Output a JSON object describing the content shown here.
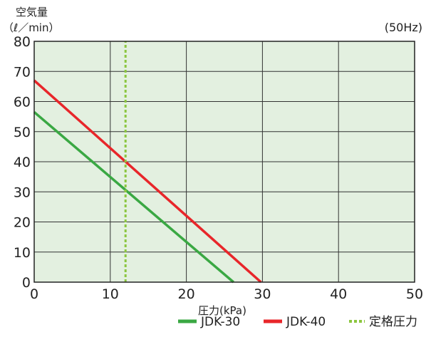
{
  "chart_data": {
    "type": "line",
    "ylabel_line1": "空気量",
    "ylabel_line2": "（ℓ／min）",
    "annotation": "(50Hz)",
    "xlabel": "圧力(kPa)",
    "xlim": [
      0,
      50
    ],
    "ylim": [
      0,
      80
    ],
    "x_ticks": [
      0,
      10,
      20,
      30,
      40,
      50
    ],
    "y_ticks": [
      0,
      10,
      20,
      30,
      40,
      50,
      60,
      70,
      80
    ],
    "grid": true,
    "legend_position": "bottom-right",
    "background_color": "#e3f0e0",
    "series": [
      {
        "name": "JDK-30",
        "color": "#3aa843",
        "style": "solid",
        "points": [
          [
            0,
            56.5
          ],
          [
            26.2,
            0
          ]
        ]
      },
      {
        "name": "JDK-40",
        "color": "#e8262a",
        "style": "solid",
        "points": [
          [
            0,
            67
          ],
          [
            29.8,
            0
          ]
        ]
      },
      {
        "name": "定格圧力",
        "color": "#8cc63f",
        "style": "dashed",
        "points": [
          [
            12,
            0
          ],
          [
            12,
            80
          ]
        ]
      }
    ]
  }
}
